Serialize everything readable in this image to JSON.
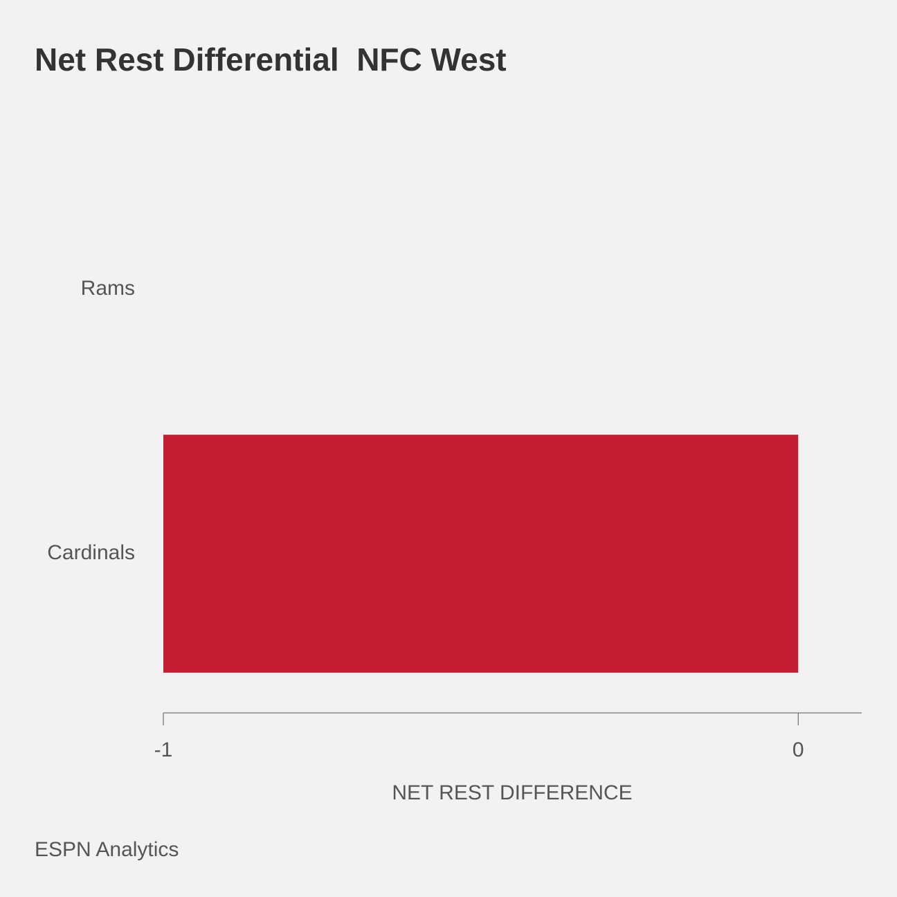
{
  "chart_data": {
    "type": "hbar",
    "title": "Net Rest Differential  NFC West",
    "categories": [
      "Rams",
      "Cardinals"
    ],
    "values": [
      0,
      -1
    ],
    "color": "#c41e33",
    "xlabel": "NET REST DIFFERENCE",
    "source": "ESPN Analytics",
    "xlim": [
      -1,
      0.1
    ],
    "xticks": [
      -1,
      0
    ]
  }
}
